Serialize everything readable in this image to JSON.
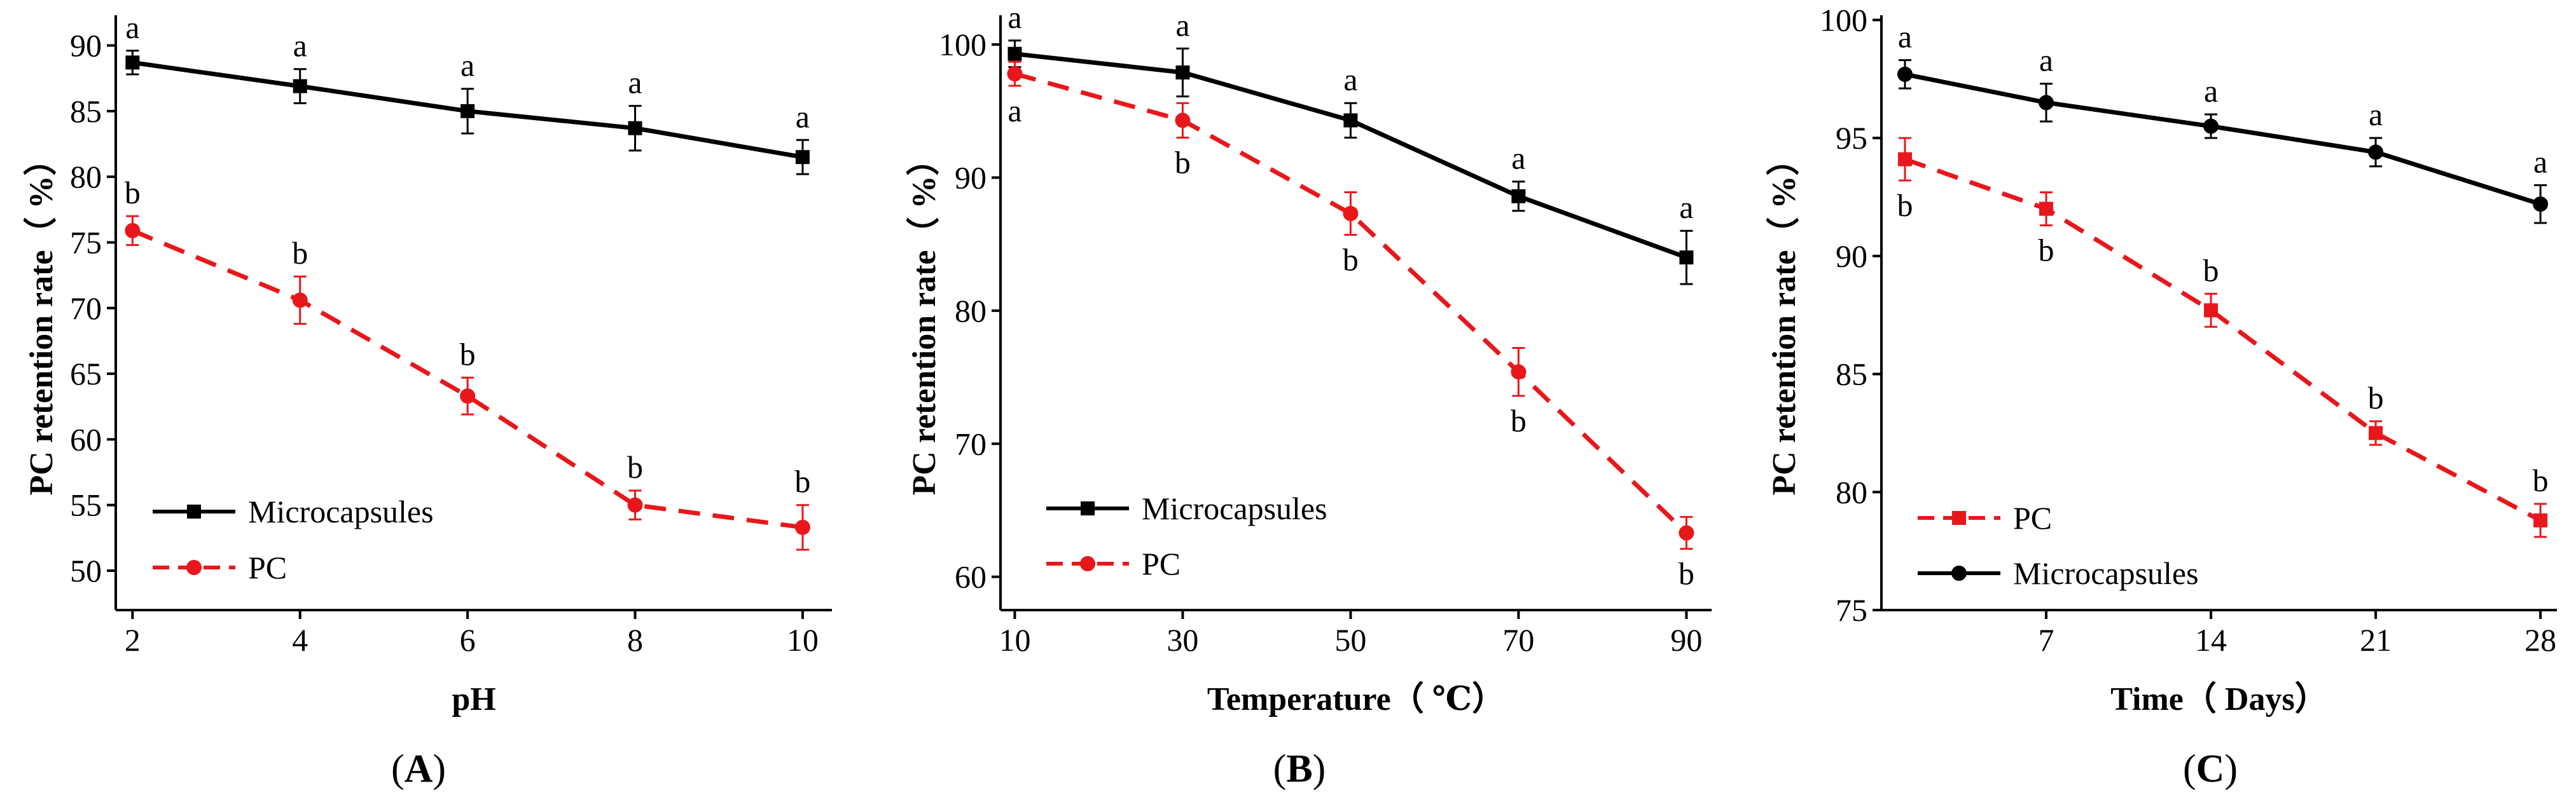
{
  "chart_data": [
    {
      "type": "line",
      "panel_label": "A",
      "xlabel": "pH",
      "ylabel": "PC retention rate（ %）",
      "x": [
        2,
        4,
        6,
        8,
        10
      ],
      "xticks": [
        "2",
        "4",
        "6",
        "8",
        "10"
      ],
      "xlim": [
        1.8,
        10.35
      ],
      "yticks": [
        "50",
        "55",
        "60",
        "65",
        "70",
        "75",
        "80",
        "85",
        "90"
      ],
      "ylim": [
        47.0,
        92.3
      ],
      "legend_position": "lower-left",
      "series": [
        {
          "name": "Microcapsules",
          "color": "#000000",
          "marker": "square",
          "dashed": false,
          "values": [
            88.7,
            86.9,
            85.0,
            83.7,
            81.5
          ],
          "errors": [
            0.9,
            1.3,
            1.7,
            1.7,
            1.3
          ],
          "letters": [
            "a",
            "a",
            "a",
            "a",
            "a"
          ]
        },
        {
          "name": "PC",
          "color": "#e8171b",
          "marker": "circle",
          "dashed": true,
          "values": [
            75.9,
            70.6,
            63.3,
            55.0,
            53.3
          ],
          "errors": [
            1.1,
            1.8,
            1.4,
            1.1,
            1.7
          ],
          "letters": [
            "b",
            "b",
            "b",
            "b",
            "b"
          ]
        }
      ]
    },
    {
      "type": "line",
      "panel_label": "B",
      "xlabel": "Temperature（ ℃）",
      "ylabel": "PC retention rate（ %）",
      "x": [
        10,
        30,
        50,
        70,
        90
      ],
      "xticks": [
        "10",
        "30",
        "50",
        "70",
        "90"
      ],
      "xlim": [
        8.3,
        93.0
      ],
      "yticks": [
        "60",
        "70",
        "80",
        "90",
        "100"
      ],
      "ylim": [
        57.5,
        102.2
      ],
      "legend_position": "lower-left",
      "series": [
        {
          "name": "Microcapsules",
          "color": "#000000",
          "marker": "square",
          "dashed": false,
          "values": [
            99.3,
            97.9,
            94.3,
            88.6,
            84.0
          ],
          "errors": [
            1.0,
            1.8,
            1.3,
            1.1,
            2.0
          ],
          "letters": [
            "a",
            "a",
            "a",
            "a",
            "a"
          ]
        },
        {
          "name": "PC",
          "color": "#e8171b",
          "marker": "circle",
          "dashed": true,
          "values": [
            97.8,
            94.3,
            87.3,
            75.4,
            63.3
          ],
          "errors": [
            0.9,
            1.3,
            1.6,
            1.8,
            1.2
          ],
          "letters": [
            "a",
            "b",
            "b",
            "b",
            "b"
          ]
        }
      ]
    },
    {
      "type": "line",
      "panel_label": "C",
      "xlabel": "Time（ Days）",
      "ylabel": "PC retention rate（ %）",
      "x": [
        1,
        7,
        14,
        21,
        28
      ],
      "xticks": [
        "7",
        "14",
        "21",
        "28"
      ],
      "xtick_values": [
        7,
        14,
        21,
        28
      ],
      "xlim": [
        0.0,
        28.7
      ],
      "yticks": [
        "75",
        "80",
        "85",
        "90",
        "95",
        "100"
      ],
      "ylim": [
        75.0,
        100.2
      ],
      "legend_position": "lower-left",
      "series": [
        {
          "name": "PC",
          "color": "#e8171b",
          "marker": "square",
          "dashed": true,
          "values": [
            94.1,
            92.0,
            87.7,
            82.5,
            78.8
          ],
          "errors": [
            0.9,
            0.7,
            0.7,
            0.5,
            0.7
          ],
          "letters": [
            "b",
            "b",
            "b",
            "b",
            "b"
          ]
        },
        {
          "name": "Microcapsules",
          "color": "#000000",
          "marker": "circle",
          "dashed": false,
          "values": [
            97.7,
            96.5,
            95.5,
            94.4,
            92.2
          ],
          "errors": [
            0.6,
            0.8,
            0.5,
            0.6,
            0.8
          ],
          "letters": [
            "a",
            "a",
            "a",
            "a",
            "a"
          ]
        }
      ]
    }
  ]
}
